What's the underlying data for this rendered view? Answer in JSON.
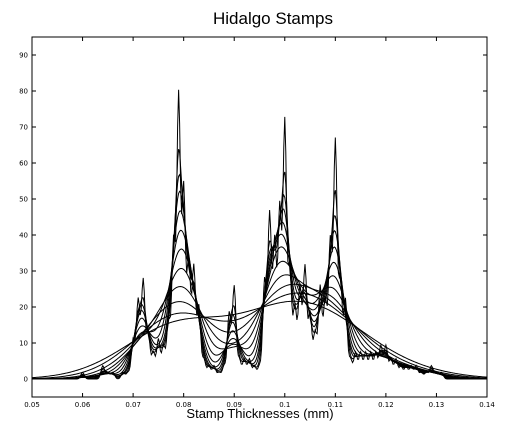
{
  "chart_data": {
    "type": "line",
    "title": "Hidalgo Stamps",
    "xlabel": "Stamp Thicknesses (mm)",
    "ylabel": "",
    "xlim": [
      0.05,
      0.14
    ],
    "ylim": [
      -5,
      95
    ],
    "x_ticks": [
      0.05,
      0.06,
      0.07,
      0.08,
      0.09,
      0.1,
      0.11,
      0.12,
      0.13,
      0.14
    ],
    "x_tick_labels": [
      "0.05",
      "0.06",
      "0.07",
      "0.08",
      "0.09",
      "0.1",
      "0.11",
      "0.12",
      "0.13",
      "0.14"
    ],
    "y_ticks": [
      0,
      10,
      20,
      30,
      40,
      50,
      60,
      70,
      80,
      90
    ],
    "y_tick_labels": [
      "0",
      "10",
      "20",
      "30",
      "40",
      "50",
      "60",
      "70",
      "80",
      "90"
    ],
    "grid": false,
    "legend": "none",
    "line_color": "#000000",
    "series": [
      {
        "bandwidth": 0.00035
      },
      {
        "bandwidth": 0.0005
      },
      {
        "bandwidth": 0.0007
      },
      {
        "bandwidth": 0.0009
      },
      {
        "bandwidth": 0.0012
      },
      {
        "bandwidth": 0.0016
      },
      {
        "bandwidth": 0.0021
      },
      {
        "bandwidth": 0.0028
      },
      {
        "bandwidth": 0.0038
      },
      {
        "bandwidth": 0.0052
      },
      {
        "bandwidth": 0.007
      },
      {
        "bandwidth": 0.009
      }
    ],
    "observations": [
      0.06,
      0.064,
      0.064,
      0.065,
      0.066,
      0.068,
      0.069,
      0.07,
      0.07,
      0.07,
      0.07,
      0.07,
      0.07,
      0.071,
      0.071,
      0.071,
      0.071,
      0.071,
      0.071,
      0.071,
      0.071,
      0.071,
      0.071,
      0.071,
      0.071,
      0.072,
      0.072,
      0.072,
      0.072,
      0.072,
      0.072,
      0.072,
      0.072,
      0.072,
      0.072,
      0.072,
      0.072,
      0.072,
      0.072,
      0.072,
      0.073,
      0.073,
      0.073,
      0.073,
      0.073,
      0.073,
      0.073,
      0.074,
      0.074,
      0.074,
      0.074,
      0.075,
      0.075,
      0.075,
      0.075,
      0.075,
      0.075,
      0.076,
      0.076,
      0.076,
      0.076,
      0.076,
      0.077,
      0.077,
      0.077,
      0.077,
      0.077,
      0.077,
      0.077,
      0.077,
      0.077,
      0.078,
      0.078,
      0.078,
      0.078,
      0.078,
      0.078,
      0.078,
      0.078,
      0.078,
      0.078,
      0.078,
      0.078,
      0.078,
      0.078,
      0.078,
      0.078,
      0.078,
      0.078,
      0.078,
      0.078,
      0.078,
      0.079,
      0.079,
      0.079,
      0.079,
      0.079,
      0.079,
      0.079,
      0.079,
      0.079,
      0.079,
      0.079,
      0.079,
      0.079,
      0.079,
      0.079,
      0.079,
      0.079,
      0.079,
      0.079,
      0.079,
      0.079,
      0.079,
      0.079,
      0.079,
      0.079,
      0.079,
      0.079,
      0.079,
      0.079,
      0.079,
      0.079,
      0.079,
      0.079,
      0.079,
      0.079,
      0.079,
      0.079,
      0.079,
      0.079,
      0.079,
      0.079,
      0.079,
      0.079,
      0.08,
      0.08,
      0.08,
      0.08,
      0.08,
      0.08,
      0.08,
      0.08,
      0.08,
      0.08,
      0.08,
      0.08,
      0.08,
      0.08,
      0.08,
      0.08,
      0.08,
      0.08,
      0.08,
      0.08,
      0.08,
      0.08,
      0.08,
      0.08,
      0.08,
      0.08,
      0.08,
      0.08,
      0.08,
      0.081,
      0.081,
      0.081,
      0.081,
      0.081,
      0.081,
      0.081,
      0.081,
      0.081,
      0.081,
      0.081,
      0.081,
      0.081,
      0.081,
      0.081,
      0.081,
      0.081,
      0.081,
      0.082,
      0.082,
      0.082,
      0.082,
      0.082,
      0.082,
      0.082,
      0.082,
      0.082,
      0.082,
      0.082,
      0.082,
      0.082,
      0.082,
      0.082,
      0.082,
      0.082,
      0.083,
      0.083,
      0.083,
      0.083,
      0.083,
      0.083,
      0.083,
      0.083,
      0.083,
      0.083,
      0.083,
      0.084,
      0.084,
      0.084,
      0.085,
      0.085,
      0.086,
      0.086,
      0.087,
      0.088,
      0.088,
      0.089,
      0.089,
      0.089,
      0.089,
      0.089,
      0.089,
      0.089,
      0.089,
      0.089,
      0.089,
      0.09,
      0.09,
      0.09,
      0.09,
      0.09,
      0.09,
      0.09,
      0.09,
      0.09,
      0.09,
      0.09,
      0.09,
      0.09,
      0.09,
      0.091,
      0.091,
      0.091,
      0.092,
      0.092,
      0.092,
      0.093,
      0.093,
      0.093,
      0.094,
      0.094,
      0.095,
      0.095,
      0.096,
      0.096,
      0.096,
      0.096,
      0.096,
      0.096,
      0.096,
      0.096,
      0.096,
      0.096,
      0.096,
      0.096,
      0.096,
      0.096,
      0.096,
      0.097,
      0.097,
      0.097,
      0.097,
      0.097,
      0.097,
      0.097,
      0.097,
      0.097,
      0.097,
      0.097,
      0.097,
      0.097,
      0.097,
      0.097,
      0.097,
      0.097,
      0.097,
      0.097,
      0.097,
      0.097,
      0.097,
      0.097,
      0.097,
      0.097,
      0.098,
      0.098,
      0.098,
      0.098,
      0.098,
      0.098,
      0.098,
      0.098,
      0.098,
      0.098,
      0.098,
      0.098,
      0.098,
      0.098,
      0.098,
      0.098,
      0.098,
      0.098,
      0.098,
      0.098,
      0.098,
      0.099,
      0.099,
      0.099,
      0.099,
      0.099,
      0.099,
      0.099,
      0.099,
      0.099,
      0.099,
      0.099,
      0.099,
      0.099,
      0.099,
      0.099,
      0.099,
      0.099,
      0.099,
      0.099,
      0.099,
      0.099,
      0.099,
      0.099,
      0.099,
      0.099,
      0.099,
      0.1,
      0.1,
      0.1,
      0.1,
      0.1,
      0.1,
      0.1,
      0.1,
      0.1,
      0.1,
      0.1,
      0.1,
      0.1,
      0.1,
      0.1,
      0.1,
      0.1,
      0.1,
      0.1,
      0.1,
      0.1,
      0.1,
      0.1,
      0.1,
      0.1,
      0.1,
      0.1,
      0.1,
      0.1,
      0.1,
      0.1,
      0.1,
      0.1,
      0.1,
      0.1,
      0.1,
      0.1,
      0.1,
      0.1,
      0.101,
      0.101,
      0.101,
      0.101,
      0.101,
      0.101,
      0.101,
      0.101,
      0.101,
      0.101,
      0.101,
      0.101,
      0.101,
      0.101,
      0.101,
      0.101,
      0.101,
      0.102,
      0.102,
      0.102,
      0.102,
      0.102,
      0.102,
      0.102,
      0.102,
      0.102,
      0.102,
      0.102,
      0.103,
      0.103,
      0.103,
      0.103,
      0.103,
      0.103,
      0.103,
      0.103,
      0.103,
      0.103,
      0.103,
      0.103,
      0.103,
      0.103,
      0.104,
      0.104,
      0.104,
      0.104,
      0.104,
      0.104,
      0.104,
      0.104,
      0.104,
      0.104,
      0.104,
      0.104,
      0.104,
      0.104,
      0.104,
      0.104,
      0.104,
      0.105,
      0.105,
      0.105,
      0.105,
      0.105,
      0.105,
      0.105,
      0.105,
      0.105,
      0.105,
      0.106,
      0.106,
      0.106,
      0.106,
      0.106,
      0.106,
      0.106,
      0.107,
      0.107,
      0.107,
      0.107,
      0.107,
      0.107,
      0.107,
      0.107,
      0.107,
      0.107,
      0.107,
      0.107,
      0.107,
      0.107,
      0.108,
      0.108,
      0.108,
      0.108,
      0.108,
      0.108,
      0.108,
      0.108,
      0.108,
      0.108,
      0.108,
      0.108,
      0.109,
      0.109,
      0.109,
      0.109,
      0.109,
      0.109,
      0.109,
      0.109,
      0.109,
      0.109,
      0.109,
      0.109,
      0.109,
      0.109,
      0.109,
      0.109,
      0.109,
      0.109,
      0.109,
      0.109,
      0.109,
      0.11,
      0.11,
      0.11,
      0.11,
      0.11,
      0.11,
      0.11,
      0.11,
      0.11,
      0.11,
      0.11,
      0.11,
      0.11,
      0.11,
      0.11,
      0.11,
      0.11,
      0.11,
      0.11,
      0.11,
      0.11,
      0.11,
      0.11,
      0.11,
      0.11,
      0.11,
      0.11,
      0.11,
      0.11,
      0.11,
      0.11,
      0.11,
      0.11,
      0.11,
      0.11,
      0.11,
      0.111,
      0.111,
      0.111,
      0.111,
      0.111,
      0.111,
      0.111,
      0.111,
      0.111,
      0.111,
      0.111,
      0.111,
      0.111,
      0.111,
      0.111,
      0.112,
      0.112,
      0.112,
      0.112,
      0.112,
      0.112,
      0.112,
      0.112,
      0.112,
      0.112,
      0.112,
      0.112,
      0.113,
      0.113,
      0.113,
      0.114,
      0.114,
      0.114,
      0.114,
      0.115,
      0.115,
      0.115,
      0.115,
      0.116,
      0.116,
      0.116,
      0.116,
      0.117,
      0.117,
      0.117,
      0.117,
      0.118,
      0.118,
      0.118,
      0.118,
      0.119,
      0.119,
      0.119,
      0.119,
      0.119,
      0.12,
      0.12,
      0.12,
      0.12,
      0.12,
      0.121,
      0.121,
      0.121,
      0.122,
      0.122,
      0.122,
      0.123,
      0.123,
      0.124,
      0.124,
      0.125,
      0.125,
      0.126,
      0.126,
      0.127,
      0.128,
      0.129,
      0.129,
      0.13,
      0.131
    ]
  }
}
